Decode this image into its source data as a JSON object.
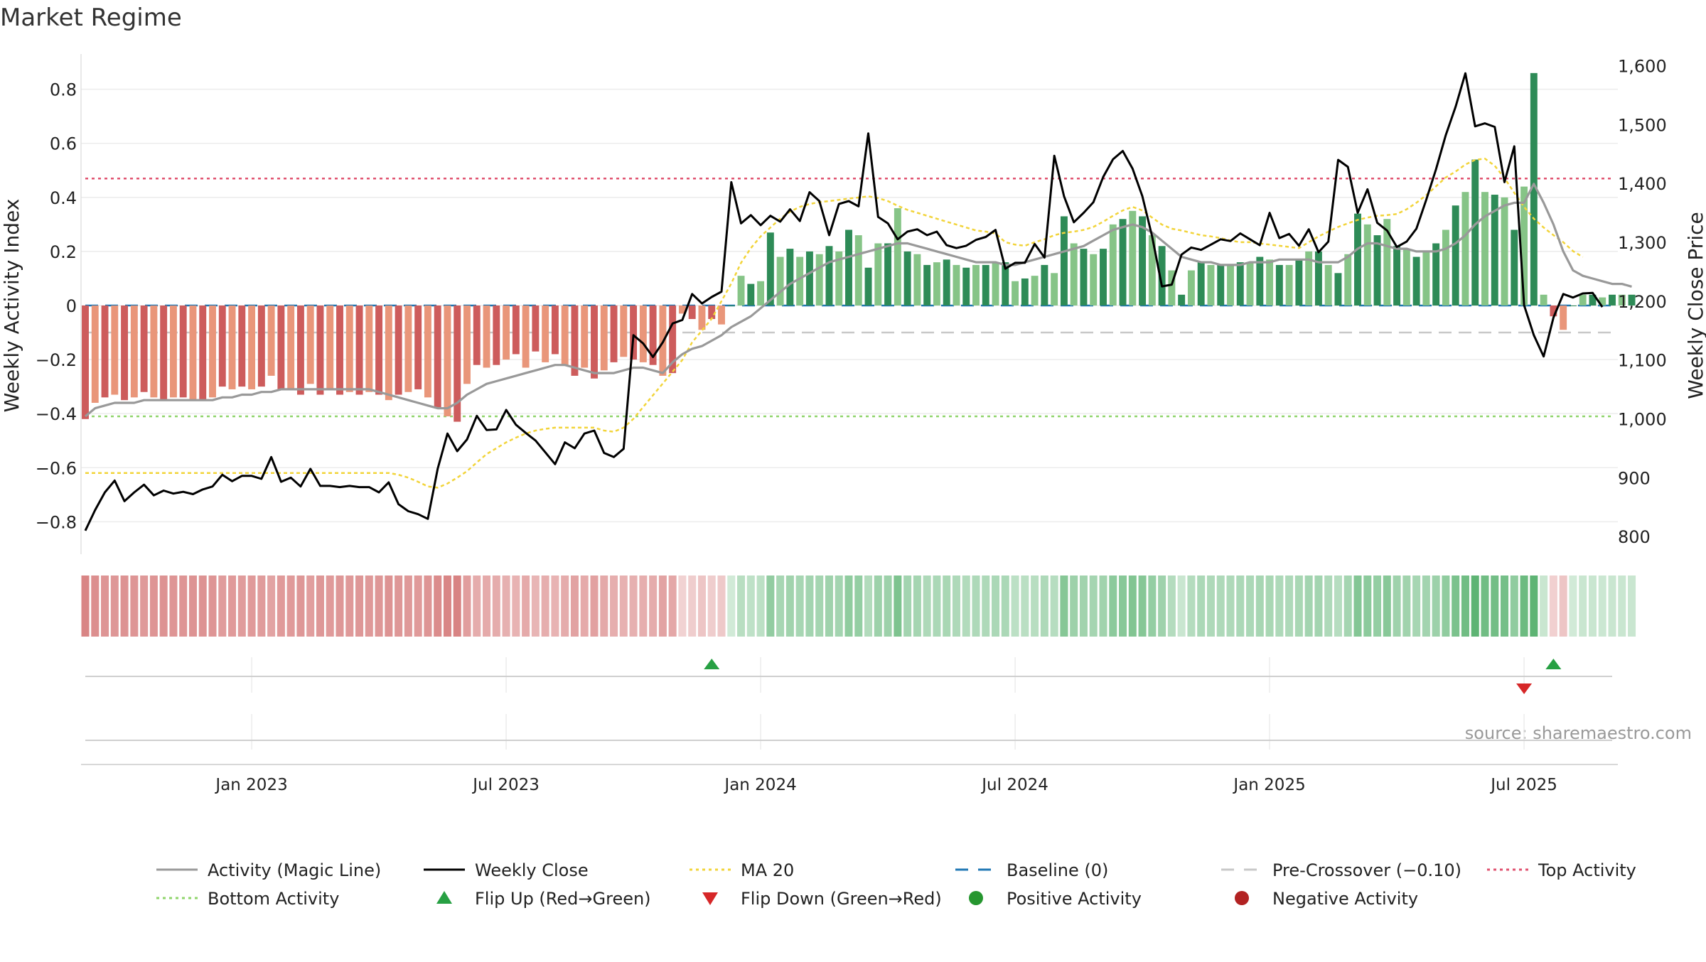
{
  "chart_data": {
    "type": "bar+line",
    "title": "Market Regime",
    "ylabel_left": "Weekly Activity Index",
    "ylabel_right": "Weekly Close Price",
    "source": "source: sharemaestro.com",
    "left_axis": {
      "ylim": [
        -0.92,
        0.92
      ],
      "ticks": [
        -0.8,
        -0.6,
        -0.4,
        -0.2,
        0,
        0.2,
        0.4,
        0.6,
        0.8
      ],
      "tick_labels": [
        "−0.8",
        "−0.6",
        "−0.4",
        "−0.2",
        "0",
        "0.2",
        "0.4",
        "0.6",
        "0.8"
      ]
    },
    "right_axis": {
      "ylim": [
        770,
        1615
      ],
      "ticks": [
        800,
        900,
        1000,
        1100,
        1200,
        1300,
        1400,
        1500,
        1600
      ],
      "tick_labels": [
        "800",
        "900",
        "1,000",
        "1,100",
        "1,200",
        "1,300",
        "1,400",
        "1,500",
        "1,600"
      ]
    },
    "x_axis": {
      "start": "2022-09-05",
      "weeks": 157,
      "ticks": [
        {
          "week": 17,
          "label": "Jan 2023"
        },
        {
          "week": 43,
          "label": "Jul 2023"
        },
        {
          "week": 69,
          "label": "Jan 2024"
        },
        {
          "week": 95,
          "label": "Jul 2024"
        },
        {
          "week": 121,
          "label": "Jan 2025"
        },
        {
          "week": 147,
          "label": "Jul 2025"
        }
      ]
    },
    "reference_lines": {
      "baseline": 0,
      "pre_crossover": -0.1,
      "top_activity": 0.47,
      "bottom_activity": -0.41
    },
    "activity": [
      -0.42,
      -0.36,
      -0.34,
      -0.33,
      -0.35,
      -0.34,
      -0.32,
      -0.34,
      -0.35,
      -0.34,
      -0.34,
      -0.35,
      -0.35,
      -0.34,
      -0.3,
      -0.31,
      -0.3,
      -0.31,
      -0.3,
      -0.26,
      -0.31,
      -0.31,
      -0.33,
      -0.29,
      -0.33,
      -0.31,
      -0.33,
      -0.32,
      -0.33,
      -0.32,
      -0.33,
      -0.35,
      -0.33,
      -0.32,
      -0.31,
      -0.34,
      -0.38,
      -0.41,
      -0.43,
      -0.29,
      -0.22,
      -0.23,
      -0.22,
      -0.2,
      -0.18,
      -0.23,
      -0.17,
      -0.21,
      -0.18,
      -0.22,
      -0.26,
      -0.23,
      -0.27,
      -0.24,
      -0.21,
      -0.19,
      -0.2,
      -0.21,
      -0.22,
      -0.26,
      -0.25,
      -0.03,
      -0.05,
      -0.09,
      -0.05,
      -0.07,
      0.0,
      0.11,
      0.08,
      0.09,
      0.27,
      0.18,
      0.21,
      0.18,
      0.2,
      0.19,
      0.22,
      0.2,
      0.28,
      0.26,
      0.14,
      0.23,
      0.23,
      0.36,
      0.2,
      0.19,
      0.15,
      0.16,
      0.17,
      0.15,
      0.14,
      0.15,
      0.15,
      0.16,
      0.16,
      0.09,
      0.1,
      0.11,
      0.15,
      0.12,
      0.33,
      0.23,
      0.21,
      0.19,
      0.21,
      0.3,
      0.32,
      0.35,
      0.33,
      0.26,
      0.22,
      0.13,
      0.04,
      0.13,
      0.16,
      0.15,
      0.15,
      0.15,
      0.16,
      0.16,
      0.18,
      0.17,
      0.15,
      0.15,
      0.17,
      0.2,
      0.2,
      0.15,
      0.12,
      0.19,
      0.34,
      0.3,
      0.26,
      0.32,
      0.22,
      0.21,
      0.18,
      0.2,
      0.23,
      0.28,
      0.37,
      0.42,
      0.54,
      0.42,
      0.41,
      0.4,
      0.28,
      0.44,
      0.86,
      0.04,
      -0.04,
      -0.09,
      0.0,
      0.04,
      0.04,
      0.03,
      0.04,
      0.04,
      0.04
    ],
    "weekly_close": [
      810,
      845,
      875,
      895,
      860,
      875,
      888,
      870,
      878,
      873,
      876,
      872,
      880,
      885,
      905,
      894,
      903,
      903,
      898,
      935,
      893,
      900,
      885,
      915,
      886,
      886,
      884,
      886,
      884,
      884,
      875,
      892,
      855,
      843,
      838,
      830,
      915,
      975,
      945,
      965,
      1005,
      981,
      982,
      1015,
      990,
      976,
      963,
      943,
      923,
      960,
      950,
      975,
      980,
      942,
      935,
      949,
      1142,
      1128,
      1105,
      1130,
      1162,
      1168,
      1212,
      1196,
      1207,
      1216,
      1402,
      1332,
      1346,
      1329,
      1345,
      1335,
      1356,
      1336,
      1385,
      1370,
      1312,
      1365,
      1370,
      1361,
      1485,
      1343,
      1332,
      1305,
      1318,
      1322,
      1312,
      1318,
      1295,
      1290,
      1294,
      1304,
      1309,
      1321,
      1255,
      1265,
      1265,
      1297,
      1274,
      1447,
      1378,
      1334,
      1350,
      1368,
      1411,
      1441,
      1455,
      1425,
      1378,
      1310,
      1225,
      1228,
      1279,
      1291,
      1287,
      1296,
      1305,
      1302,
      1315,
      1305,
      1295,
      1350,
      1307,
      1314,
      1294,
      1322,
      1283,
      1301,
      1440,
      1428,
      1350,
      1390,
      1333,
      1320,
      1292,
      1301,
      1323,
      1372,
      1424,
      1482,
      1530,
      1587,
      1497,
      1502,
      1496,
      1402,
      1463,
      1193,
      1142,
      1106,
      1172,
      1212,
      1206,
      1213,
      1214,
      1190
    ],
    "ma20": [
      908,
      908,
      908,
      908,
      908,
      908,
      908,
      908,
      908,
      908,
      908,
      908,
      908,
      908,
      908,
      908,
      908,
      908,
      908,
      908,
      908,
      908,
      908,
      908,
      908,
      908,
      908,
      908,
      908,
      908,
      908,
      908,
      905,
      900,
      893,
      885,
      883,
      890,
      900,
      911,
      926,
      940,
      950,
      960,
      968,
      975,
      980,
      983,
      985,
      985,
      985,
      985,
      985,
      980,
      978,
      985,
      1000,
      1020,
      1040,
      1060,
      1080,
      1100,
      1130,
      1150,
      1170,
      1200,
      1230,
      1265,
      1290,
      1310,
      1325,
      1340,
      1352,
      1360,
      1365,
      1368,
      1370,
      1372,
      1374,
      1376,
      1378,
      1375,
      1370,
      1362,
      1355,
      1350,
      1345,
      1340,
      1335,
      1330,
      1325,
      1320,
      1318,
      1315,
      1300,
      1296,
      1294,
      1300,
      1305,
      1312,
      1316,
      1318,
      1321,
      1326,
      1335,
      1345,
      1354,
      1360,
      1354,
      1342,
      1330,
      1323,
      1320,
      1316,
      1312,
      1310,
      1307,
      1303,
      1300,
      1300,
      1298,
      1296,
      1294,
      1292,
      1290,
      1300,
      1310,
      1318,
      1326,
      1332,
      1338,
      1342,
      1345,
      1346,
      1348,
      1356,
      1367,
      1380,
      1395,
      1410,
      1420,
      1432,
      1440,
      1442,
      1430,
      1409,
      1384,
      1360,
      1340,
      1325,
      1312,
      1300,
      1285,
      1275
    ],
    "magic_line": [
      -0.41,
      -0.38,
      -0.37,
      -0.36,
      -0.36,
      -0.36,
      -0.35,
      -0.35,
      -0.35,
      -0.35,
      -0.35,
      -0.35,
      -0.35,
      -0.35,
      -0.34,
      -0.34,
      -0.33,
      -0.33,
      -0.32,
      -0.32,
      -0.31,
      -0.31,
      -0.31,
      -0.31,
      -0.31,
      -0.31,
      -0.31,
      -0.31,
      -0.31,
      -0.31,
      -0.32,
      -0.33,
      -0.34,
      -0.35,
      -0.36,
      -0.37,
      -0.38,
      -0.38,
      -0.36,
      -0.33,
      -0.31,
      -0.29,
      -0.28,
      -0.27,
      -0.26,
      -0.25,
      -0.24,
      -0.23,
      -0.22,
      -0.22,
      -0.23,
      -0.24,
      -0.25,
      -0.25,
      -0.25,
      -0.24,
      -0.23,
      -0.23,
      -0.24,
      -0.25,
      -0.21,
      -0.18,
      -0.16,
      -0.15,
      -0.13,
      -0.11,
      -0.08,
      -0.06,
      -0.04,
      -0.01,
      0.02,
      0.05,
      0.08,
      0.1,
      0.12,
      0.14,
      0.16,
      0.17,
      0.18,
      0.19,
      0.2,
      0.21,
      0.22,
      0.23,
      0.23,
      0.22,
      0.21,
      0.2,
      0.19,
      0.18,
      0.17,
      0.16,
      0.16,
      0.16,
      0.15,
      0.15,
      0.16,
      0.17,
      0.18,
      0.19,
      0.2,
      0.21,
      0.22,
      0.24,
      0.26,
      0.28,
      0.29,
      0.3,
      0.29,
      0.27,
      0.24,
      0.21,
      0.18,
      0.17,
      0.16,
      0.16,
      0.15,
      0.15,
      0.15,
      0.16,
      0.16,
      0.16,
      0.17,
      0.17,
      0.17,
      0.17,
      0.16,
      0.16,
      0.16,
      0.18,
      0.21,
      0.23,
      0.23,
      0.22,
      0.21,
      0.21,
      0.2,
      0.2,
      0.2,
      0.21,
      0.23,
      0.26,
      0.3,
      0.33,
      0.35,
      0.37,
      0.38,
      0.38,
      0.45,
      0.38,
      0.3,
      0.2,
      0.13,
      0.11,
      0.1,
      0.09,
      0.08,
      0.08,
      0.07
    ],
    "flip_up_weeks": [
      64,
      150
    ],
    "flip_down_weeks": [
      147
    ],
    "legend": [
      {
        "label": "Activity (Magic Line)",
        "style": "line",
        "color": "#999999"
      },
      {
        "label": "Weekly Close",
        "style": "line",
        "color": "#000000"
      },
      {
        "label": "MA 20",
        "style": "dotted",
        "color": "#f2d43a"
      },
      {
        "label": "Baseline (0)",
        "style": "dashed",
        "color": "#1f77b4"
      },
      {
        "label": "Pre-Crossover (−0.10)",
        "style": "dashed",
        "color": "#c8c8c8"
      },
      {
        "label": "Top Activity",
        "style": "dotted",
        "color": "#e0526f"
      },
      {
        "label": "Bottom Activity",
        "style": "dotted",
        "color": "#8fd46b"
      },
      {
        "label": "Flip Up (Red→Green)",
        "style": "triangle-up",
        "color": "#27a043"
      },
      {
        "label": "Flip Down (Green→Red)",
        "style": "triangle-down",
        "color": "#d62728"
      },
      {
        "label": "Positive Activity",
        "style": "dot",
        "color": "#26962f"
      },
      {
        "label": "Negative Activity",
        "style": "dot",
        "color": "#b22222"
      }
    ],
    "colors": {
      "pos_dark": "#2e8b57",
      "pos_light": "#86c487",
      "neg_dark": "#cd5c5c",
      "neg_light": "#e9967a",
      "close": "#000000",
      "magic": "#999999",
      "ma20": "#f2d43a",
      "baseline": "#1f77b4",
      "pre": "#c8c8c8",
      "top": "#e0526f",
      "bottom": "#8fd46b",
      "flip_up": "#27a043",
      "flip_down": "#d62728"
    }
  }
}
